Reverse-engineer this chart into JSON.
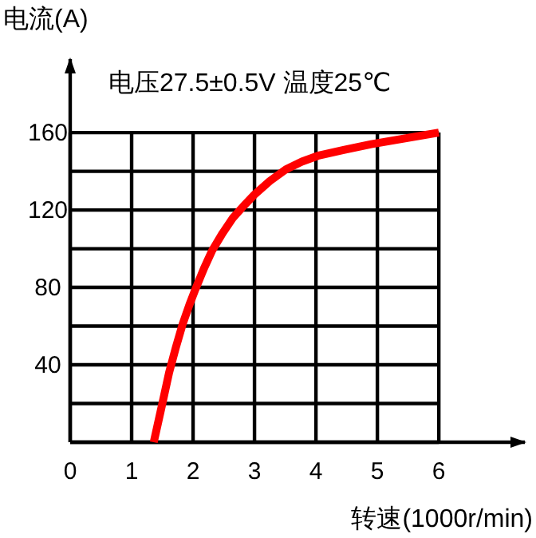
{
  "chart_data": {
    "type": "line",
    "title": "电压27.5±0.5V 温度25℃",
    "xlabel": "转速(1000r/min)",
    "ylabel": "电流(A)",
    "xlim": [
      0,
      7.4
    ],
    "ylim": [
      0,
      198
    ],
    "xticks": [
      0,
      1,
      2,
      3,
      4,
      5,
      6
    ],
    "yticks": [
      {
        "value": 0,
        "label": null
      },
      {
        "value": 20,
        "label": null
      },
      40,
      {
        "value": 60,
        "label": null
      },
      80,
      {
        "value": 100,
        "label": null
      },
      120,
      {
        "value": 140,
        "label": null
      },
      160
    ],
    "grid": true,
    "marker": "none",
    "line_style": "solid",
    "series": [
      {
        "color": "#ff0000",
        "x": [
          1.36,
          1.5,
          1.61,
          1.72,
          1.83,
          1.94,
          2.05,
          2.18,
          2.31,
          2.48,
          2.65,
          2.82,
          3.0,
          3.25,
          3.51,
          3.77,
          4.03,
          4.45,
          4.9,
          5.45,
          6.0
        ],
        "values": [
          0,
          20,
          36,
          49,
          61,
          71,
          80,
          90,
          99,
          108,
          116,
          122,
          128,
          135,
          141,
          145,
          148,
          151,
          154,
          157,
          160
        ]
      }
    ]
  }
}
